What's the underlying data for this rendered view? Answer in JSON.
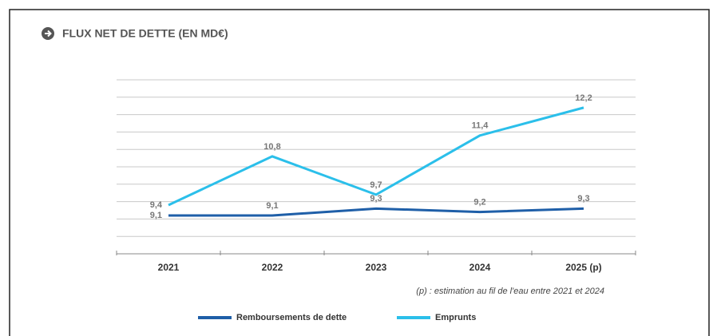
{
  "chart_data": {
    "type": "line",
    "title": "FLUX NET DE DETTE (EN MD€)",
    "categories": [
      "2021",
      "2022",
      "2023",
      "2024",
      "2025 (p)"
    ],
    "series": [
      {
        "name": "Remboursements de dette",
        "color": "#1f5fa8",
        "values": [
          9.1,
          9.1,
          9.3,
          9.2,
          9.3
        ],
        "value_labels": [
          "9,1",
          "9,1",
          "9,3",
          "9,2",
          "9,3"
        ]
      },
      {
        "name": "Emprunts",
        "color": "#2bbfea",
        "values": [
          9.4,
          10.8,
          9.7,
          11.4,
          12.2
        ],
        "value_labels": [
          "9,4",
          "10,8",
          "9,7",
          "11,4",
          "12,2"
        ]
      }
    ],
    "ylim": [
      8,
      13
    ],
    "yticks": [
      8.5,
      9,
      9.5,
      10,
      10.5,
      11,
      11.5,
      12,
      12.5,
      13
    ],
    "grid": true,
    "note": "(p) : estimation au fil de l'eau entre 2021 et 2024",
    "legend": "bottom"
  }
}
